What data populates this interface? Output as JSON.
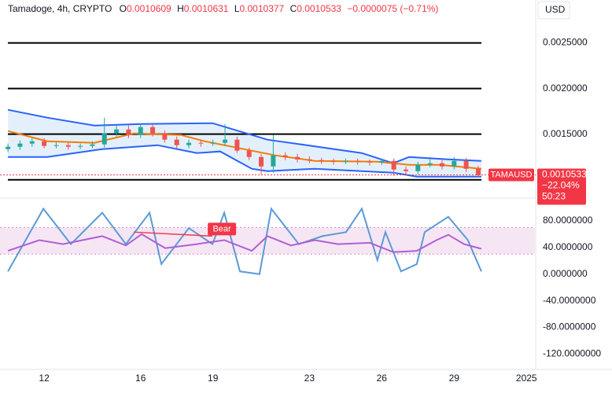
{
  "header": {
    "symbol": "Tamadoge, 4h, CRYPTO",
    "open_label": "O",
    "open": "0.0010609",
    "high_label": "H",
    "high": "0.0010631",
    "low_label": "L",
    "low": "0.0010377",
    "close_label": "C",
    "close": "0.0010533",
    "change": "−0.0000075 (−0.71%)"
  },
  "chart_data": [
    {
      "type": "candlestick",
      "currency": "USD",
      "x": [
        10.5,
        11,
        11.5,
        12,
        12.5,
        13,
        13.5,
        14,
        14.5,
        15,
        15.5,
        16,
        16.5,
        17,
        17.5,
        18,
        18.5,
        19,
        19.5,
        20,
        20.5,
        21,
        21.5,
        22,
        22.5,
        23,
        23.5,
        24,
        24.5,
        25,
        25.5,
        26,
        26.5,
        27,
        27.5,
        28,
        28.5,
        29,
        29.5,
        30
      ],
      "open": [
        0.0013362,
        0.0013621,
        0.0013966,
        0.0014224,
        0.0013707,
        0.0013793,
        0.0013621,
        0.0013707,
        0.0013879,
        0.0015086,
        0.0015517,
        0.0014914,
        0.0015776,
        0.0015086,
        0.0014397,
        0.0013793,
        0.0014052,
        0.0013966,
        0.0014052,
        0.0014397,
        0.001319,
        0.00125,
        0.0011466,
        0.0012672,
        0.00125,
        0.0012241,
        0.0012155,
        0.0012069,
        0.0011983,
        0.0012069,
        0.0011983,
        0.0011897,
        0.0012069,
        0.0011121,
        0.0010948,
        0.0011638,
        0.001181,
        0.0011466,
        0.0012069,
        0.0011207
      ],
      "high": [
        0.0013966,
        0.001431,
        0.0014569,
        0.0014569,
        0.0014138,
        0.0014138,
        0.0013966,
        0.0014224,
        0.001681,
        0.0015948,
        0.0015948,
        0.0016121,
        0.0016121,
        0.0015431,
        0.0014741,
        0.0014397,
        0.0014397,
        0.0014397,
        0.0016121,
        0.0014741,
        0.0013534,
        0.0012845,
        0.0014914,
        0.0013017,
        0.0012845,
        0.0012586,
        0.0012414,
        0.0012328,
        0.0012328,
        0.0012328,
        0.0012241,
        0.0012328,
        0.0012328,
        0.0011466,
        0.0011983,
        0.00125,
        0.0012155,
        0.00125,
        0.0012414,
        0.0011552
      ],
      "low": [
        0.0013017,
        0.0013276,
        0.0013621,
        0.0013448,
        0.0013448,
        0.0013276,
        0.0013362,
        0.0013448,
        0.0013534,
        0.0014741,
        0.0014569,
        0.0014569,
        0.0014741,
        0.0014052,
        0.0013448,
        0.0013448,
        0.0013621,
        0.0013707,
        0.0013707,
        0.0012931,
        0.0012155,
        0.0010603,
        0.0010776,
        0.0012155,
        0.0011897,
        0.001181,
        0.0011724,
        0.0011638,
        0.0011724,
        0.0011638,
        0.0011552,
        0.0011638,
        0.0010431,
        0.0010603,
        0.0010603,
        0.0011379,
        0.0011121,
        0.0011121,
        0.0010862,
        0.0010259
      ],
      "close": [
        0.0013621,
        0.0013966,
        0.0014224,
        0.0013707,
        0.0013793,
        0.0013621,
        0.0013707,
        0.0013879,
        0.0015086,
        0.0015517,
        0.0014914,
        0.0015776,
        0.0015086,
        0.0014397,
        0.0013793,
        0.0014052,
        0.0013966,
        0.0014052,
        0.0014397,
        0.001319,
        0.00125,
        0.0011466,
        0.0012672,
        0.00125,
        0.0012241,
        0.0012155,
        0.0012069,
        0.0011983,
        0.0012069,
        0.0011983,
        0.0011897,
        0.0012069,
        0.0011121,
        0.0010948,
        0.0011638,
        0.001181,
        0.0011466,
        0.0012069,
        0.0011207,
        0.0010517
      ],
      "up_color": "#26a69a",
      "down_color": "#ef5350",
      "lines": [
        {
          "color": "#2962ff",
          "x": [
            10.5,
            12.13,
            14.09,
            16.04,
            18.98,
            21.26,
            22.89,
            25.17,
            26.48,
            27.13,
            28.76,
            30.13
          ],
          "values": [
            0.0017672,
            0.001681,
            0.0015948,
            0.0016121,
            0.0016207,
            0.0014397,
            0.0013793,
            0.0012931,
            0.001181,
            0.00125,
            0.0012241,
            0.0012069
          ]
        },
        {
          "color": "#2962ff",
          "x": [
            10.5,
            12.13,
            14.41,
            16.7,
            18.33,
            19.3,
            20.61,
            21.26,
            23.22,
            26.48,
            27.45,
            30.13
          ],
          "values": [
            0.00125,
            0.00125,
            0.0013362,
            0.0013793,
            0.0012931,
            0.0013103,
            0.0011207,
            0.0010948,
            0.0011207,
            0.0010776,
            0.0010345,
            0.0010345
          ]
        },
        {
          "color": "#f57c00",
          "x": [
            10.5,
            12.13,
            14.09,
            15.72,
            17.67,
            18.65,
            19.96,
            21.59,
            23.22,
            25.82,
            27.13,
            28.43,
            30.13
          ],
          "values": [
            0.0015345,
            0.0014224,
            0.0014052,
            0.0015086,
            0.0014914,
            0.0014224,
            0.0013534,
            0.0012672,
            0.0012069,
            0.0011983,
            0.0011638,
            0.0011638,
            0.0011207
          ]
        }
      ],
      "band_fill": "#e3f0fb",
      "hlines": [
        0.0025,
        0.002,
        0.0015,
        0.001
      ],
      "xlim": [
        10.17,
        32.35
      ],
      "ylim": [
        0.00086,
        0.00297
      ],
      "yticks": [
        {
          "value": 0.0015,
          "label": "0.0015000"
        },
        {
          "value": 0.002,
          "label": "0.0020000"
        },
        {
          "value": 0.0025,
          "label": "0.0025000"
        }
      ],
      "last_price": {
        "ticker": "TAMAUSD",
        "value": 0.0010533,
        "change": "−22.04%",
        "countdown": "50:23",
        "color": "#f23645"
      }
    },
    {
      "type": "line",
      "series": [
        {
          "color": "#5b9bd5",
          "x": [
            10.5,
            11.97,
            13.11,
            14.41,
            15.39,
            16.37,
            16.86,
            18.0,
            18.98,
            19.47,
            20.12,
            20.93,
            21.42,
            22.56,
            23.54,
            24.52,
            25.17,
            25.82,
            26.15,
            26.8,
            27.45,
            27.78,
            28.76,
            29.57,
            30.13
          ],
          "values": [
            4,
            98,
            45,
            92,
            45,
            92,
            15,
            69,
            45,
            92,
            4,
            0,
            98,
            45,
            57,
            63,
            98,
            21,
            63,
            4,
            15,
            63,
            86,
            51,
            4
          ]
        },
        {
          "color": "#b05ed6",
          "x": [
            10.5,
            11.8,
            12.78,
            14.41,
            15.39,
            16.04,
            17.02,
            18.33,
            19.47,
            20.61,
            21.26,
            22.24,
            23.22,
            24.19,
            25.5,
            26.48,
            27.45,
            28.27,
            28.76,
            29.41,
            30.13
          ],
          "values": [
            35,
            51,
            45,
            57,
            43,
            60,
            39,
            45,
            51,
            35,
            57,
            43,
            51,
            45,
            47,
            33,
            35,
            51,
            59,
            45,
            38
          ]
        }
      ],
      "band": [
        30,
        70
      ],
      "band_color": "#f6e6f4",
      "divergence": {
        "label": "Bear",
        "color": "#f23645",
        "x": [
          15.72,
          18.98
        ],
        "values": [
          63,
          57
        ]
      },
      "xlim": [
        10.17,
        32.35
      ],
      "xticks": [
        12,
        16,
        19,
        23,
        26,
        29,
        {
          "value": 32,
          "label": "2025"
        }
      ],
      "ylim": [
        -143,
        107
      ],
      "yticks": [
        {
          "value": -120,
          "label": "-120.0000000"
        },
        {
          "value": -80,
          "label": "-80.0000000"
        },
        {
          "value": -40,
          "label": "-40.0000000"
        },
        {
          "value": 0,
          "label": "0.0000000"
        },
        {
          "value": 40,
          "label": "40.0000000"
        },
        {
          "value": 80,
          "label": "80.0000000"
        }
      ]
    }
  ]
}
